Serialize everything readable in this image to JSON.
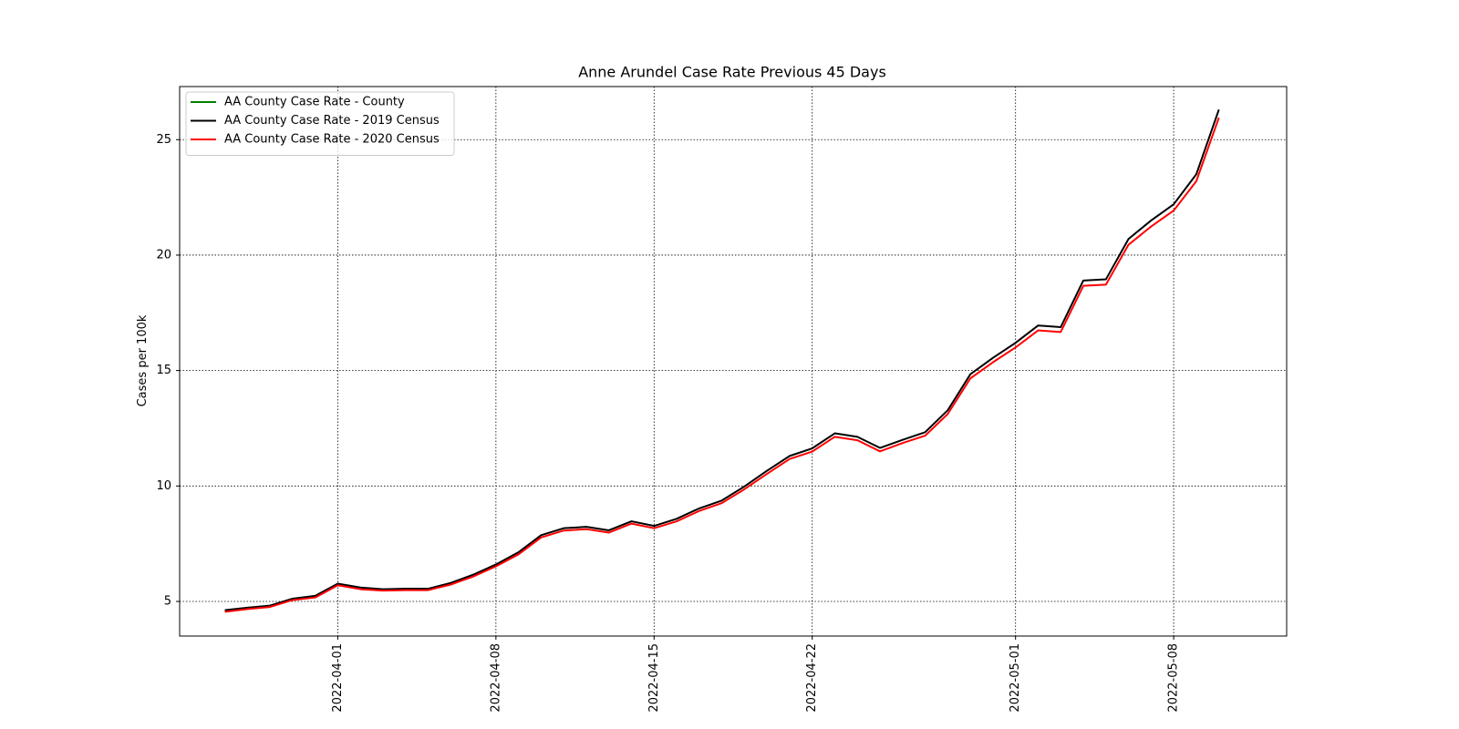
{
  "chart_data": {
    "type": "line",
    "title": "Anne Arundel Case Rate Previous 45 Days",
    "xlabel": "",
    "ylabel": "Cases per 100k",
    "x_start": "2022-03-27",
    "x_end": "2022-05-10",
    "xlim": [
      "2022-03-25",
      "2022-05-13"
    ],
    "ylim": [
      3.5,
      27.3
    ],
    "x_ticks": [
      "2022-04-01",
      "2022-04-08",
      "2022-04-15",
      "2022-04-22",
      "2022-05-01",
      "2022-05-08"
    ],
    "y_ticks": [
      5,
      10,
      15,
      20,
      25
    ],
    "grid": true,
    "legend_position": "top-left",
    "series": [
      {
        "name": "AA County Case Rate - County",
        "color": "#008000",
        "values": []
      },
      {
        "name": "AA County Case Rate - 2019 Census",
        "color": "#000000",
        "values": [
          4.62,
          4.73,
          4.82,
          5.12,
          5.24,
          5.77,
          5.6,
          5.53,
          5.55,
          5.55,
          5.8,
          6.16,
          6.6,
          7.13,
          7.87,
          8.17,
          8.23,
          8.08,
          8.47,
          8.27,
          8.58,
          9.03,
          9.37,
          9.98,
          10.66,
          11.3,
          11.63,
          12.28,
          12.13,
          11.65,
          12.0,
          12.33,
          13.28,
          14.84,
          15.55,
          16.2,
          16.95,
          16.88,
          18.9,
          18.95,
          20.7,
          21.5,
          22.2,
          23.5,
          26.3
        ]
      },
      {
        "name": "AA County Case Rate - 2020 Census",
        "color": "#ff0000",
        "values": [
          4.55,
          4.67,
          4.76,
          5.06,
          5.17,
          5.7,
          5.53,
          5.47,
          5.49,
          5.49,
          5.73,
          6.08,
          6.52,
          7.04,
          7.77,
          8.07,
          8.13,
          7.98,
          8.37,
          8.17,
          8.47,
          8.92,
          9.26,
          9.86,
          10.53,
          11.17,
          11.49,
          12.13,
          11.98,
          11.5,
          11.86,
          12.18,
          13.12,
          14.66,
          15.36,
          16.0,
          16.74,
          16.67,
          18.67,
          18.72,
          20.45,
          21.24,
          21.93,
          23.2,
          25.95
        ]
      }
    ]
  }
}
